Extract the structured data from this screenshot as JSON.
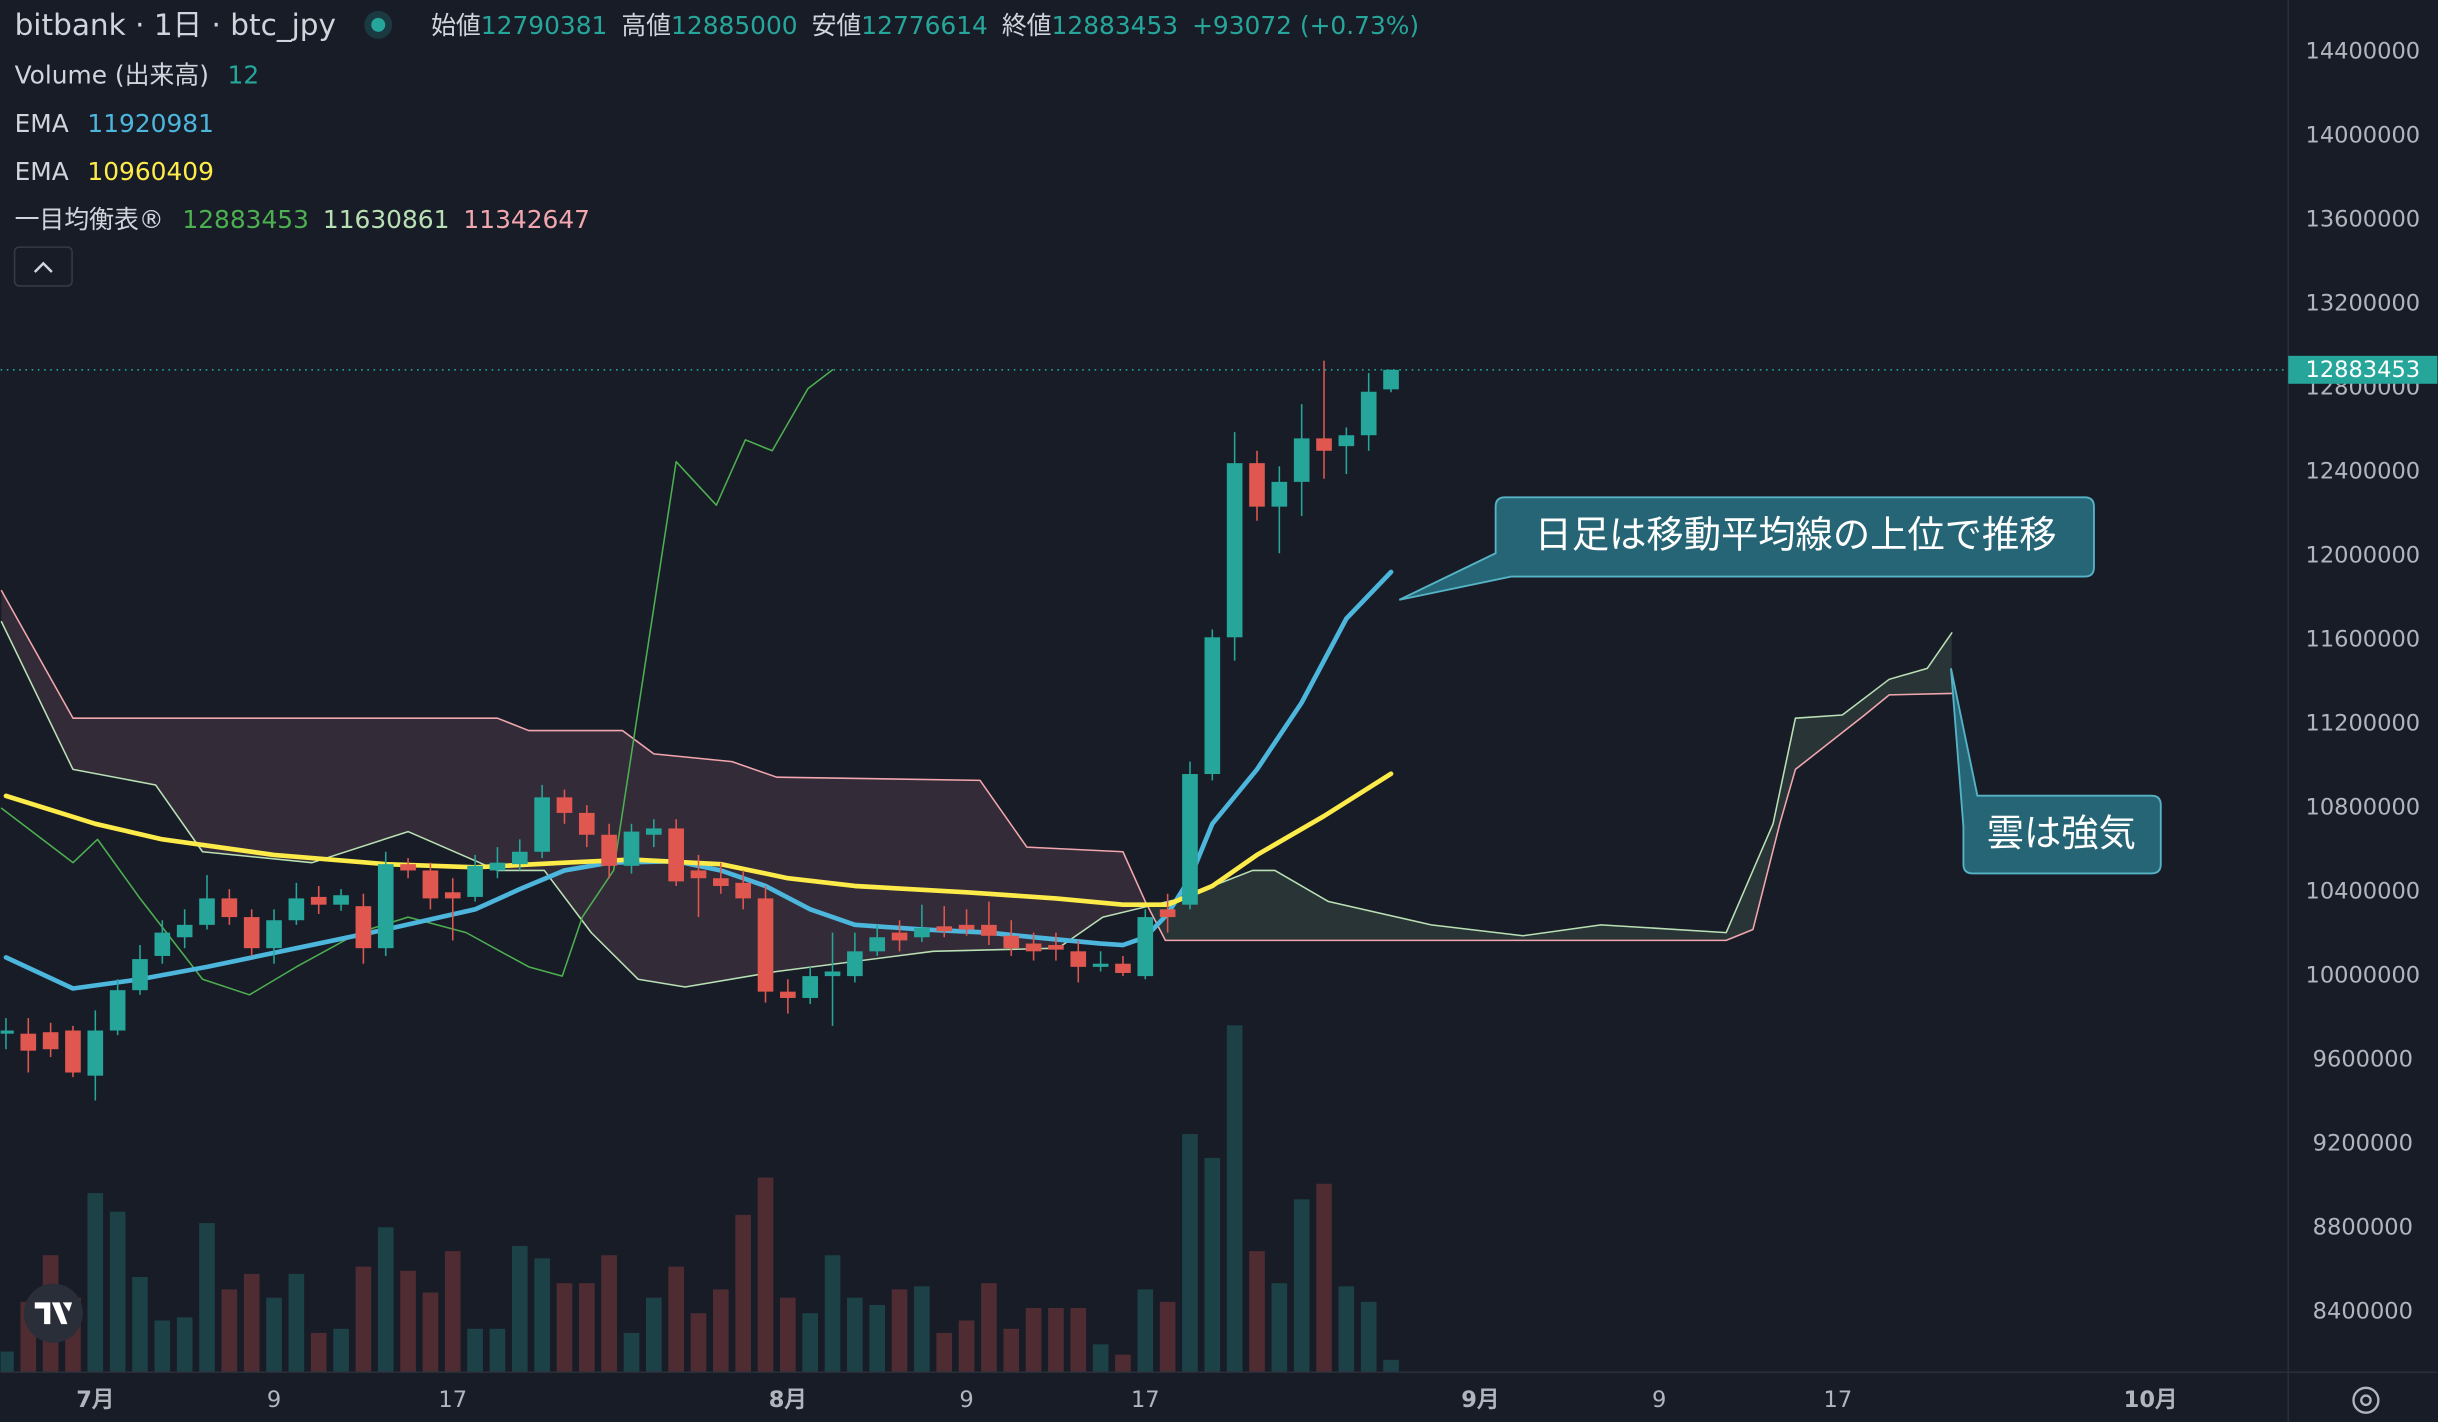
{
  "chart_data": {
    "type": "candlestick",
    "title": "bitbank · 1日 · btc_jpy",
    "ohlc_labels": [
      "始値",
      "高値",
      "安値",
      "終値"
    ],
    "change": "+93072 (+0.73%)",
    "volume_label": "Volume (出来高)",
    "ichimoku_label": "一目均衡表®",
    "annotations": [
      "日足は移動平均線の上位で推移",
      "雲は強気"
    ],
    "up_color": "#26a69a",
    "down_color": "#e0574f",
    "volume_up_color": "rgba(38,166,154,0.28)",
    "volume_down_color": "rgba(224,87,79,0.28)",
    "grid": false,
    "xlim": [
      -4.24,
      98.16
    ],
    "xticks": [
      {
        "value": 0,
        "label": "7月"
      },
      {
        "value": 8,
        "label": "9"
      },
      {
        "value": 16,
        "label": "17"
      },
      {
        "value": 31,
        "label": "8月"
      },
      {
        "value": 39,
        "label": "9"
      },
      {
        "value": 47,
        "label": "17"
      },
      {
        "value": 62,
        "label": "9月"
      },
      {
        "value": 70,
        "label": "9"
      },
      {
        "value": 78,
        "label": "17"
      },
      {
        "value": 92,
        "label": "10月"
      }
    ],
    "ylim": [
      8111000,
      14644000
    ],
    "yticks": [
      8400000,
      8800000,
      9200000,
      9600000,
      10000000,
      10400000,
      10800000,
      11200000,
      11600000,
      12000000,
      12400000,
      12800000,
      13200000,
      13600000,
      14000000,
      14400000
    ],
    "volume_lim": [
      0,
      1325
    ],
    "x": [
      -4,
      -3,
      -2,
      -1,
      0,
      1,
      2,
      3,
      4,
      5,
      6,
      7,
      8,
      9,
      10,
      11,
      12,
      13,
      14,
      15,
      16,
      17,
      18,
      19,
      20,
      21,
      22,
      23,
      24,
      25,
      26,
      27,
      28,
      29,
      30,
      31,
      32,
      33,
      34,
      35,
      36,
      37,
      38,
      39,
      40,
      41,
      42,
      43,
      44,
      45,
      46,
      47,
      48,
      49,
      50,
      51,
      52,
      53,
      54,
      55,
      56,
      57,
      58
    ],
    "open": [
      9723000,
      9723000,
      9730000,
      9738000,
      9523000,
      9738000,
      9930000,
      10093000,
      10182000,
      10241000,
      10367000,
      10278000,
      10130000,
      10263000,
      10374000,
      10337000,
      10330000,
      10130000,
      10530000,
      10500000,
      10396000,
      10374000,
      10500000,
      10530000,
      10589000,
      10848000,
      10774000,
      10670000,
      10522000,
      10670000,
      10700000,
      10500000,
      10463000,
      10441000,
      10367000,
      9923000,
      9893000,
      9997000,
      9997000,
      10115000,
      10204000,
      10182000,
      10234000,
      10241000,
      10241000,
      10189000,
      10152000,
      10145000,
      10115000,
      10041000,
      10056000,
      9997000,
      10315000,
      10337000,
      10959000,
      11610000,
      12439000,
      12232000,
      12350000,
      12557000,
      12520000,
      12572000,
      12790381
    ],
    "high": [
      9797000,
      9797000,
      9775000,
      9760000,
      9834000,
      9982000,
      10145000,
      10263000,
      10315000,
      10478000,
      10411000,
      10315000,
      10315000,
      10441000,
      10426000,
      10411000,
      10389000,
      10589000,
      10559000,
      10537000,
      10463000,
      10574000,
      10611000,
      10648000,
      10907000,
      10885000,
      10811000,
      10722000,
      10722000,
      10744000,
      10744000,
      10574000,
      10537000,
      10500000,
      10426000,
      9982000,
      10041000,
      10204000,
      10204000,
      10241000,
      10263000,
      10337000,
      10330000,
      10315000,
      10352000,
      10263000,
      10204000,
      10204000,
      10167000,
      10115000,
      10093000,
      10315000,
      10389000,
      11018000,
      11647000,
      12587000,
      12498000,
      12424000,
      12720000,
      12927000,
      12609000,
      12868000,
      12885000
    ],
    "low": [
      9649000,
      9538000,
      9612000,
      9516000,
      9405000,
      9716000,
      9908000,
      10056000,
      10130000,
      10219000,
      10241000,
      10093000,
      10056000,
      10241000,
      10293000,
      10308000,
      10056000,
      10093000,
      10463000,
      10315000,
      10167000,
      10352000,
      10463000,
      10500000,
      10559000,
      10722000,
      10611000,
      10463000,
      10485000,
      10611000,
      10426000,
      10278000,
      10389000,
      10315000,
      9871000,
      9819000,
      9864000,
      9760000,
      9967000,
      10093000,
      10115000,
      10160000,
      10182000,
      10189000,
      10145000,
      10093000,
      10071000,
      10071000,
      9967000,
      10019000,
      9997000,
      9982000,
      10204000,
      10315000,
      10929000,
      11499000,
      12165000,
      12010000,
      12187000,
      12365000,
      12387000,
      12498000,
      12776614
    ],
    "close": [
      9738000,
      9642000,
      9649000,
      9538000,
      9738000,
      9930000,
      10078000,
      10204000,
      10241000,
      10367000,
      10278000,
      10130000,
      10263000,
      10367000,
      10337000,
      10382000,
      10130000,
      10530000,
      10500000,
      10367000,
      10367000,
      10522000,
      10537000,
      10589000,
      10848000,
      10774000,
      10670000,
      10522000,
      10685000,
      10700000,
      10448000,
      10463000,
      10426000,
      10367000,
      9923000,
      9893000,
      9997000,
      10019000,
      10115000,
      10182000,
      10167000,
      10226000,
      10211000,
      10219000,
      10189000,
      10130000,
      10115000,
      10123000,
      10041000,
      10056000,
      10012000,
      10278000,
      10278000,
      10959000,
      11610000,
      12439000,
      12232000,
      12350000,
      12557000,
      12498000,
      12572000,
      12779000,
      12883453
    ],
    "volume": [
      20,
      68,
      113,
      72,
      173,
      155,
      92,
      50,
      53,
      144,
      80,
      95,
      72,
      95,
      38,
      42,
      102,
      140,
      98,
      77,
      117,
      42,
      42,
      122,
      110,
      86,
      86,
      113,
      38,
      72,
      102,
      57,
      80,
      152,
      188,
      72,
      57,
      113,
      72,
      65,
      80,
      83,
      38,
      50,
      86,
      42,
      62,
      62,
      62,
      27,
      17,
      80,
      68,
      230,
      207,
      335,
      117,
      86,
      167,
      182,
      83,
      68,
      12
    ],
    "series": [
      {
        "name": "EMA",
        "color": "#4db6dc",
        "x": [
          -4,
          -1,
          2,
          5,
          9,
          13,
          17,
          19,
          21,
          23,
          26,
          28,
          30,
          32,
          34,
          37,
          40,
          42,
          45,
          46,
          47,
          48,
          49,
          50,
          52,
          54,
          55,
          56,
          58
        ],
        "values": [
          10086000,
          9938000,
          9982000,
          10041000,
          10130000,
          10219000,
          10315000,
          10411000,
          10500000,
          10537000,
          10544000,
          10500000,
          10426000,
          10315000,
          10241000,
          10219000,
          10204000,
          10182000,
          10152000,
          10145000,
          10182000,
          10293000,
          10463000,
          10722000,
          10981000,
          11299000,
          11499000,
          11699000,
          11920981
        ]
      },
      {
        "name": "EMA",
        "color": "#fdeb4a",
        "x": [
          -4,
          0,
          3,
          8,
          13,
          17,
          21,
          24,
          28,
          31,
          34,
          39,
          43,
          46,
          48,
          50,
          52,
          55,
          58
        ],
        "values": [
          10855000,
          10722000,
          10648000,
          10574000,
          10530000,
          10515000,
          10537000,
          10552000,
          10530000,
          10463000,
          10426000,
          10396000,
          10367000,
          10337000,
          10337000,
          10426000,
          10574000,
          10759000,
          10960409
        ]
      }
    ],
    "ichimoku": {
      "lagging": {
        "color": "#4caf50",
        "x": [
          -4.2,
          -1,
          0.1,
          2,
          4.8,
          6.9,
          9,
          11.8,
          14,
          16.6,
          19.4,
          20.9,
          21.8,
          23.2,
          26,
          27.8,
          29.1,
          30.3,
          31.9,
          33
        ],
        "values": [
          10796000,
          10537000,
          10648000,
          10367000,
          9982000,
          9908000,
          10041000,
          10204000,
          10278000,
          10204000,
          10041000,
          9997000,
          10278000,
          10500000,
          12446000,
          12239000,
          12550000,
          12498000,
          12794000,
          12883453
        ]
      },
      "span_a": {
        "color": "#b9e0b4",
        "x": [
          -4.2,
          -1,
          2.7,
          4.8,
          9.7,
          14,
          18,
          20.1,
          22.2,
          24.3,
          26.4,
          30.5,
          37.5,
          43.1,
          45.1,
          48.6,
          51.8,
          52.8,
          55.2,
          59.8,
          63.9,
          67.4,
          73,
          75.1,
          76.1,
          78.2,
          80.3,
          82,
          83.1
        ],
        "values": [
          11684000,
          10981000,
          10907000,
          10589000,
          10537000,
          10685000,
          10500000,
          10500000,
          10204000,
          9982000,
          9945000,
          10019000,
          10115000,
          10130000,
          10278000,
          10367000,
          10500000,
          10500000,
          10352000,
          10241000,
          10189000,
          10241000,
          10204000,
          10722000,
          11225000,
          11240000,
          11410000,
          11462000,
          11630861
        ]
      },
      "span_b": {
        "color": "#f2a7ae",
        "x": [
          -4.2,
          -1,
          18,
          19.4,
          23.6,
          25,
          28.5,
          30.5,
          39.6,
          41.7,
          46,
          47,
          47.9,
          73,
          74.2,
          75.4,
          76.1,
          79.2,
          80.3,
          83.1
        ],
        "values": [
          11832000,
          11225000,
          11225000,
          11166000,
          11166000,
          11055000,
          11018000,
          10944000,
          10929000,
          10611000,
          10589000,
          10352000,
          10167000,
          10167000,
          10219000,
          10722000,
          10981000,
          11240000,
          11336000,
          11342647
        ]
      },
      "bull_fill": "rgba(165,214,167,0.13)",
      "bear_fill": "rgba(244,143,177,0.13)"
    }
  }
}
